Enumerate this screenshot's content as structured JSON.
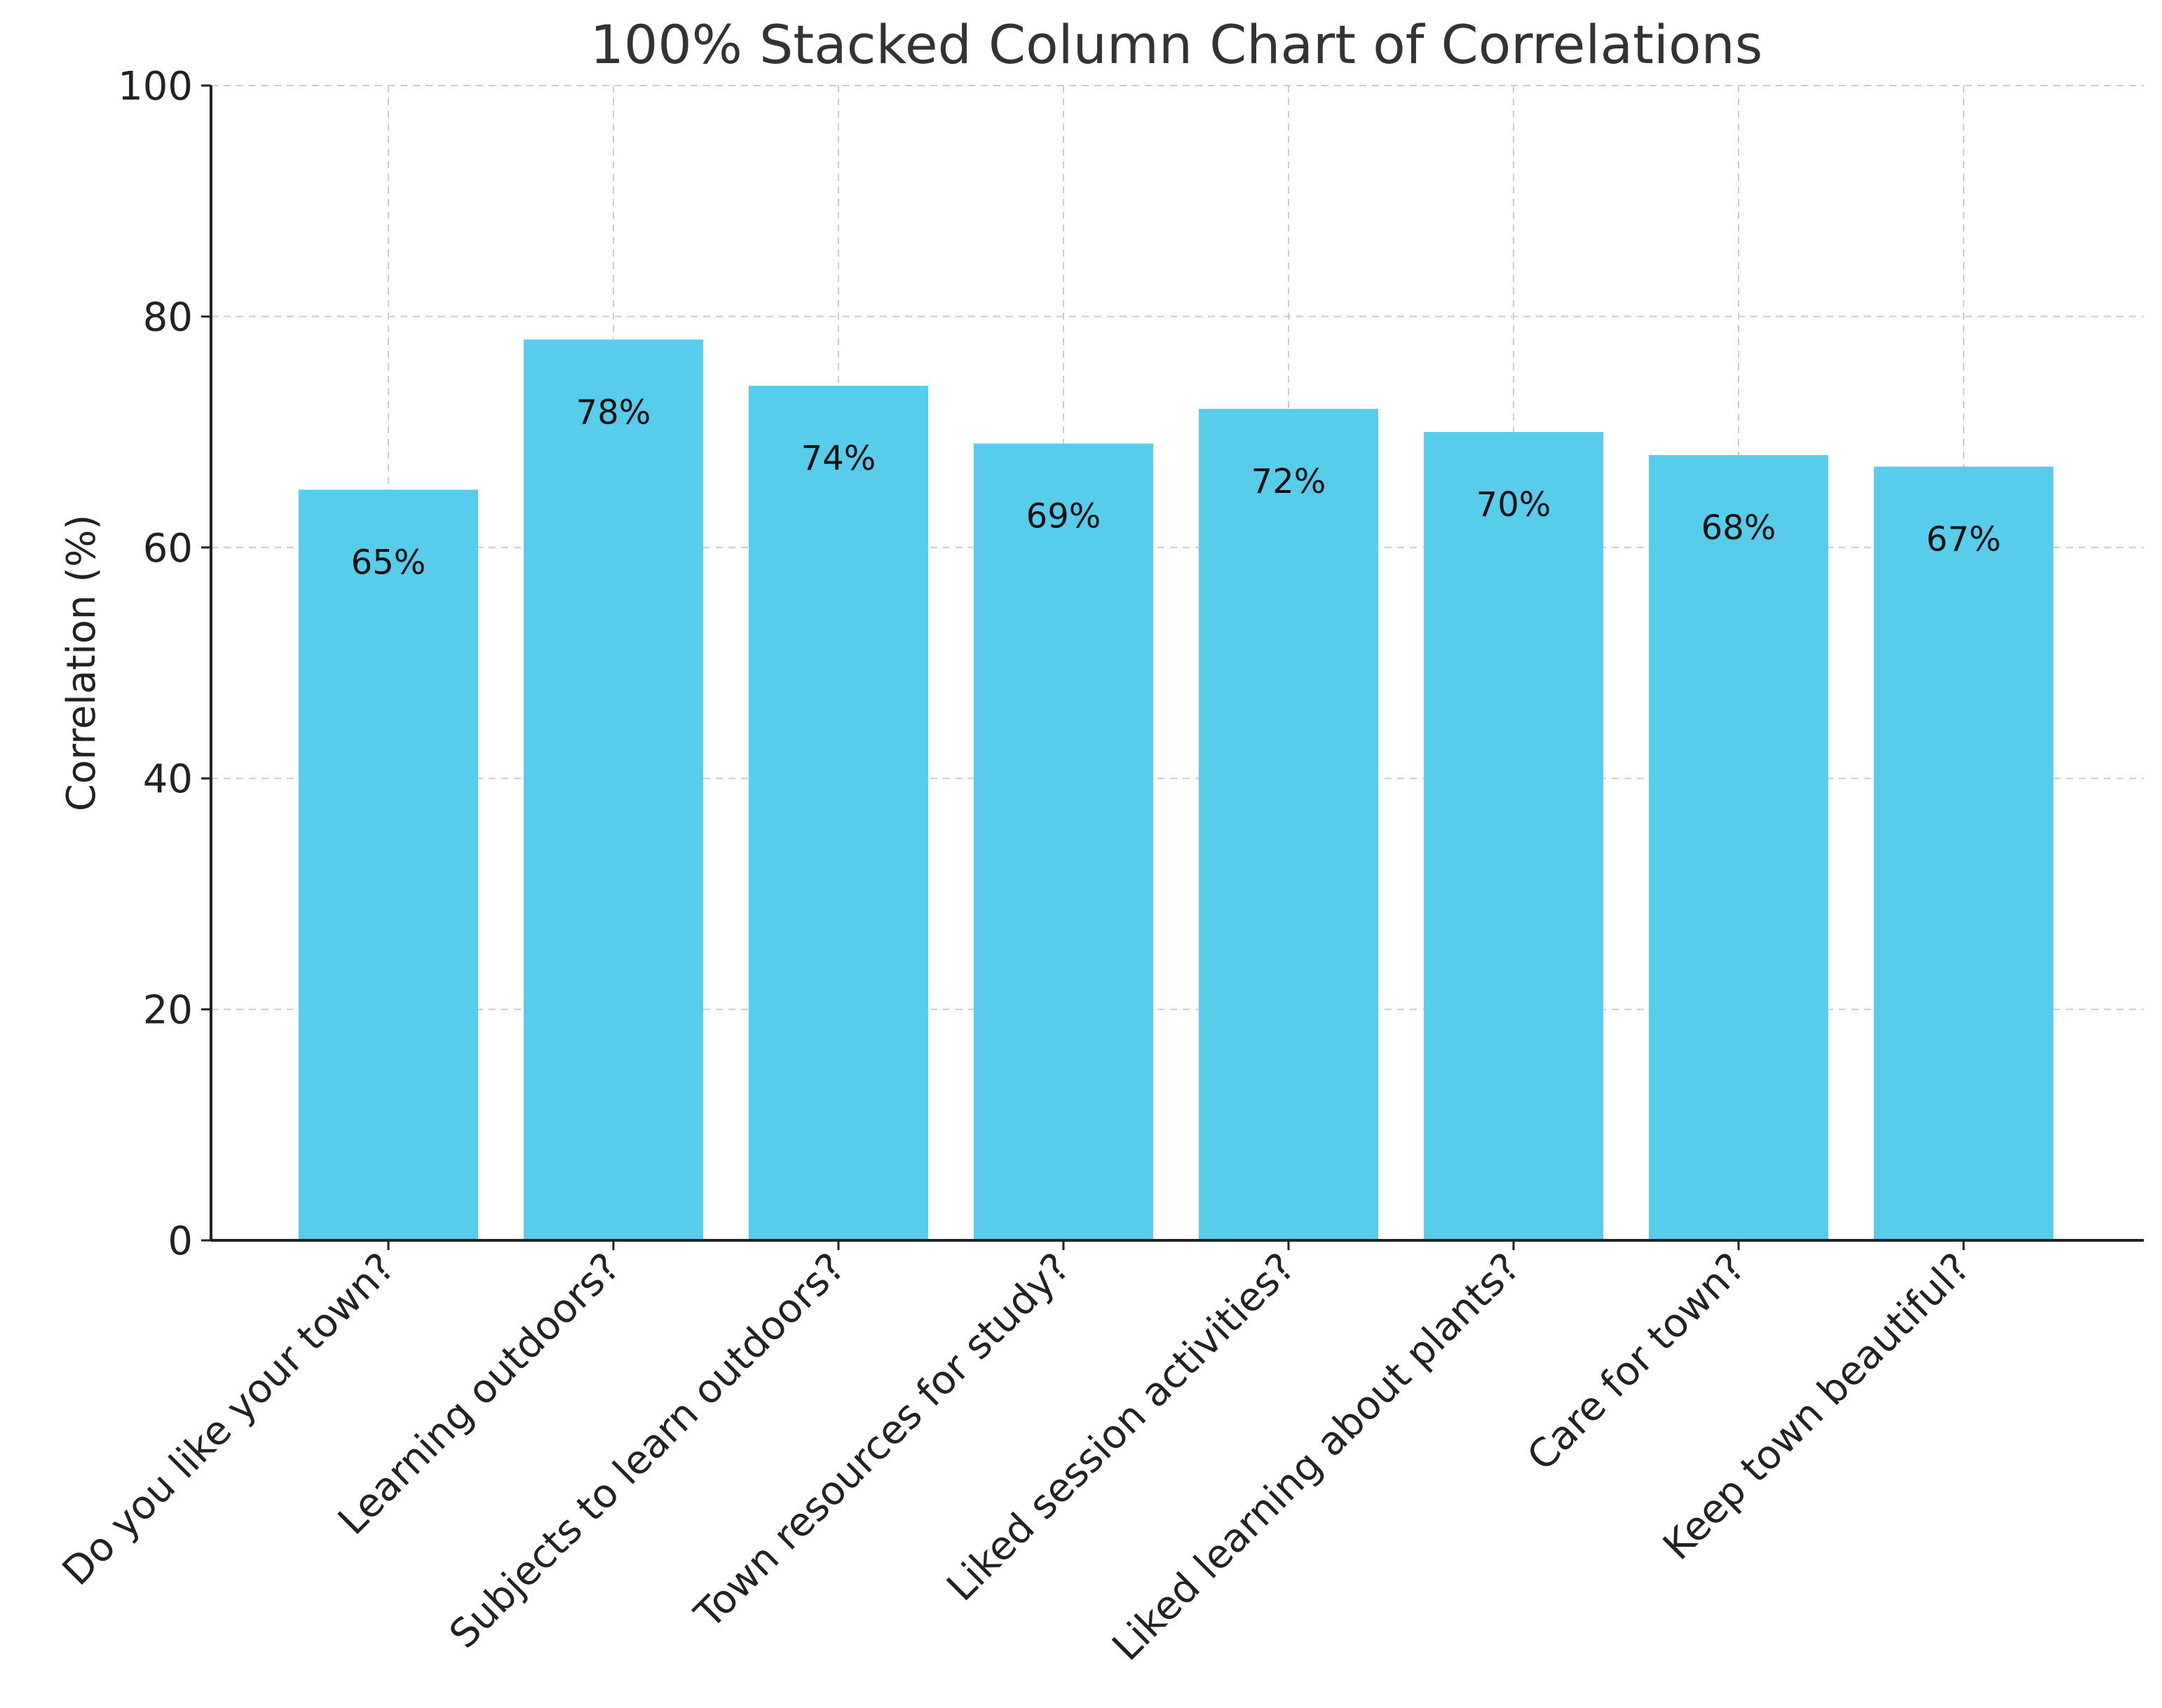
{
  "chart_data": {
    "type": "bar",
    "title": "100% Stacked Column Chart of Correlations",
    "xlabel": "",
    "ylabel": "Correlation (%)",
    "ylim": [
      0,
      100
    ],
    "yticks": [
      0,
      20,
      40,
      60,
      80,
      100
    ],
    "grid": true,
    "bar_color": "#57cceb",
    "categories": [
      "Do you like your town?",
      "Learning outdoors?",
      "Subjects to learn outdoors?",
      "Town resources for study?",
      "Liked session activities?",
      "Liked learning about plants?",
      "Care for town?",
      "Keep town beautiful?"
    ],
    "values": [
      65,
      78,
      74,
      69,
      72,
      70,
      68,
      67
    ],
    "data_labels": [
      "65%",
      "78%",
      "74%",
      "69%",
      "72%",
      "70%",
      "68%",
      "67%"
    ]
  }
}
